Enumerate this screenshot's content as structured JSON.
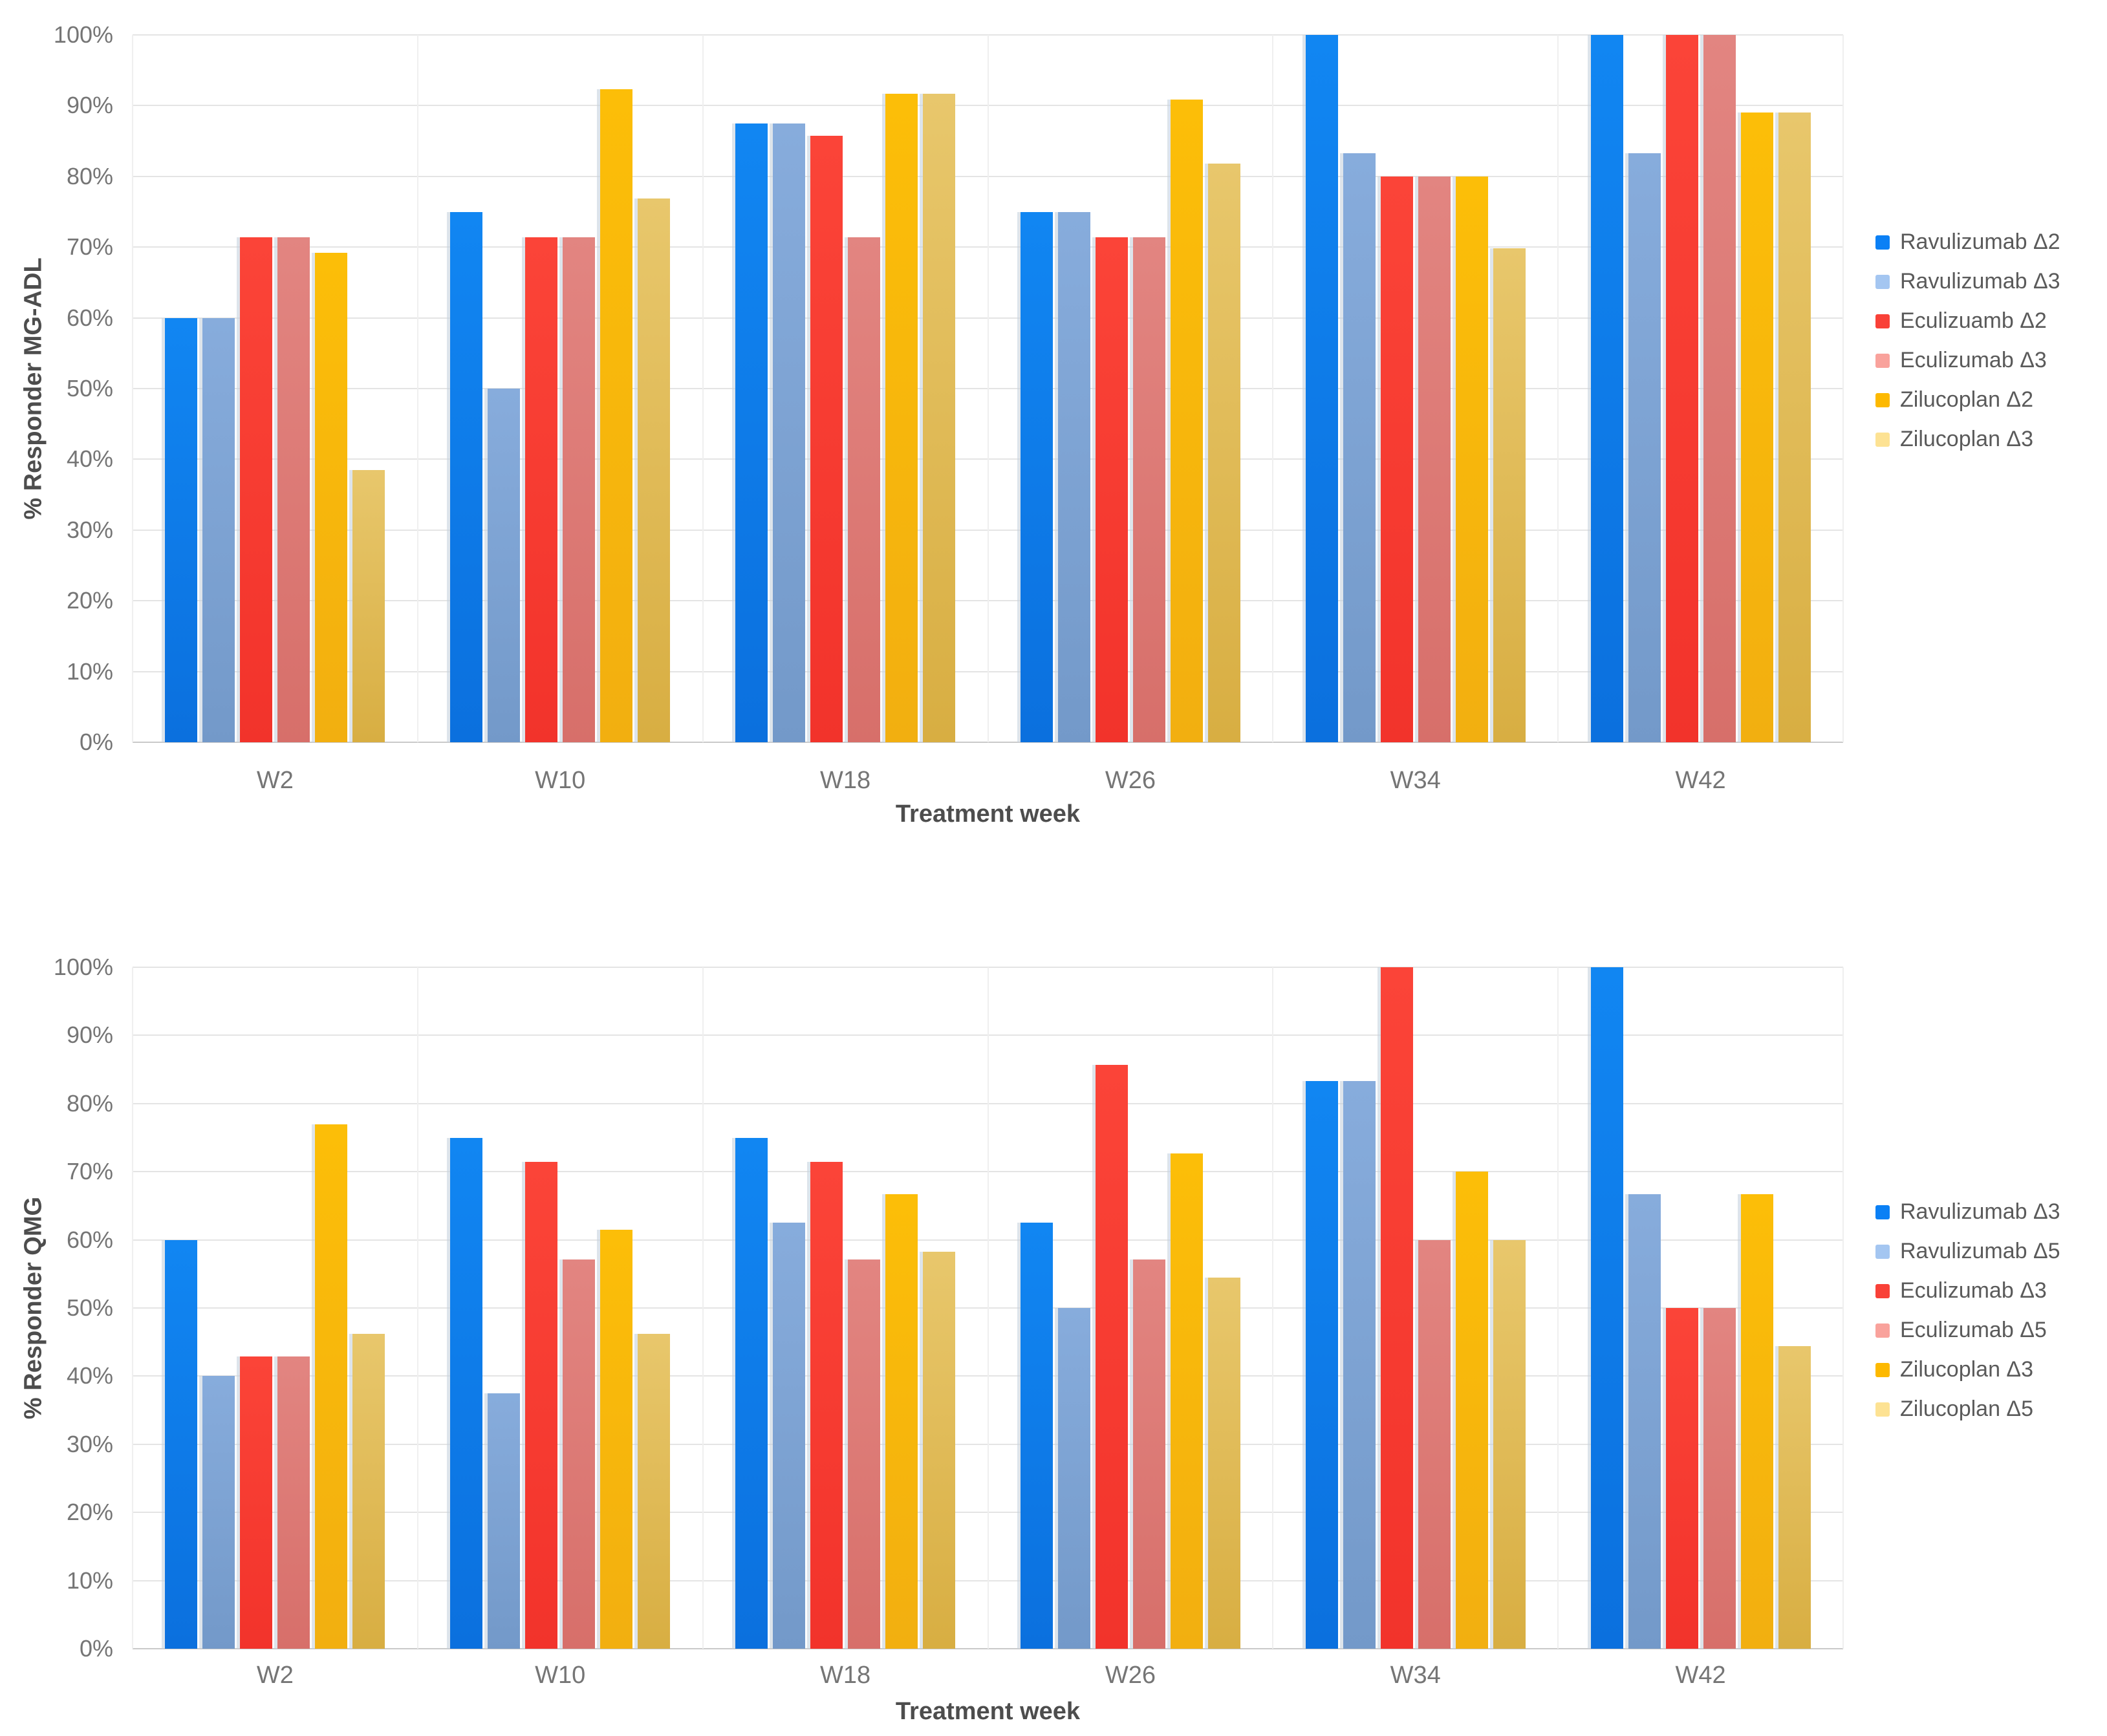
{
  "chart_data": [
    {
      "type": "bar",
      "title": "",
      "ylabel": "% Responder MG-ADL",
      "xlabel": "Treatment week",
      "ylim": [
        0,
        100
      ],
      "ytick_labels": [
        "0%",
        "10%",
        "20%",
        "30%",
        "40%",
        "50%",
        "60%",
        "70%",
        "80%",
        "90%",
        "100%"
      ],
      "grid": "horizontal",
      "legend_position": "right",
      "categories": [
        "W2",
        "W10",
        "W18",
        "W26",
        "W34",
        "W42"
      ],
      "series": [
        {
          "name": "Ravulizumab Δ2",
          "legend_color": "#0b80f5",
          "bar_top": "#1186f2",
          "bar_bottom": "#0b70de",
          "values": [
            60,
            75,
            87.5,
            75,
            100,
            100
          ]
        },
        {
          "name": "Ravulizumab Δ3",
          "legend_color": "#a4c6f1",
          "bar_top": "#87acdc",
          "bar_bottom": "#7399c9",
          "values": [
            60,
            50,
            87.5,
            75,
            83.3,
            83.3
          ]
        },
        {
          "name": "Eculizuamb Δ2",
          "legend_color": "#f94138",
          "bar_top": "#fb4438",
          "bar_bottom": "#f2332b",
          "values": [
            71.4,
            71.4,
            85.7,
            71.4,
            80,
            100
          ]
        },
        {
          "name": "Eculizumab Δ3",
          "legend_color": "#f9a29c",
          "bar_top": "#e28581",
          "bar_bottom": "#d76f6a",
          "values": [
            71.4,
            71.4,
            71.4,
            71.4,
            80,
            100
          ]
        },
        {
          "name": "Zilucoplan Δ2",
          "legend_color": "#fdb900",
          "bar_top": "#fcbe08",
          "bar_bottom": "#f2af10",
          "values": [
            69.2,
            92.3,
            91.7,
            90.9,
            80,
            89
          ]
        },
        {
          "name": "Zilucoplan Δ3",
          "legend_color": "#fde293",
          "bar_top": "#e8c76c",
          "bar_bottom": "#d8ae42",
          "values": [
            38.5,
            76.9,
            91.7,
            81.8,
            69.8,
            89
          ]
        }
      ]
    },
    {
      "type": "bar",
      "title": "",
      "ylabel": "% Responder QMG",
      "xlabel": "Treatment week",
      "ylim": [
        0,
        100
      ],
      "ytick_labels": [
        "0%",
        "10%",
        "20%",
        "30%",
        "40%",
        "50%",
        "60%",
        "70%",
        "80%",
        "90%",
        "100%"
      ],
      "grid": "horizontal",
      "legend_position": "right",
      "categories": [
        "W2",
        "W10",
        "W18",
        "W26",
        "W34",
        "W42"
      ],
      "series": [
        {
          "name": "Ravulizumab Δ3",
          "legend_color": "#0b80f5",
          "bar_top": "#1186f2",
          "bar_bottom": "#0b70de",
          "values": [
            60,
            75,
            75,
            62.5,
            83.3,
            100
          ]
        },
        {
          "name": "Ravulizumab Δ5",
          "legend_color": "#a4c6f1",
          "bar_top": "#87acdc",
          "bar_bottom": "#7399c9",
          "values": [
            40,
            37.5,
            62.5,
            50,
            83.3,
            66.7
          ]
        },
        {
          "name": "Eculizumab Δ3",
          "legend_color": "#f94138",
          "bar_top": "#fb4438",
          "bar_bottom": "#f2332b",
          "values": [
            42.9,
            71.4,
            71.4,
            85.7,
            100,
            50
          ]
        },
        {
          "name": "Eculizumab Δ5",
          "legend_color": "#f9a29c",
          "bar_top": "#e28581",
          "bar_bottom": "#d76f6a",
          "values": [
            42.9,
            57.1,
            57.1,
            57.1,
            60,
            50
          ]
        },
        {
          "name": "Zilucoplan Δ3",
          "legend_color": "#fdb900",
          "bar_top": "#fcbe08",
          "bar_bottom": "#f2af10",
          "values": [
            76.9,
            61.5,
            66.7,
            72.7,
            70,
            66.7
          ]
        },
        {
          "name": "Zilucoplan Δ5",
          "legend_color": "#fde293",
          "bar_top": "#e8c76c",
          "bar_bottom": "#d8ae42",
          "values": [
            46.2,
            46.2,
            58.3,
            54.5,
            60,
            44.4
          ]
        }
      ]
    }
  ]
}
